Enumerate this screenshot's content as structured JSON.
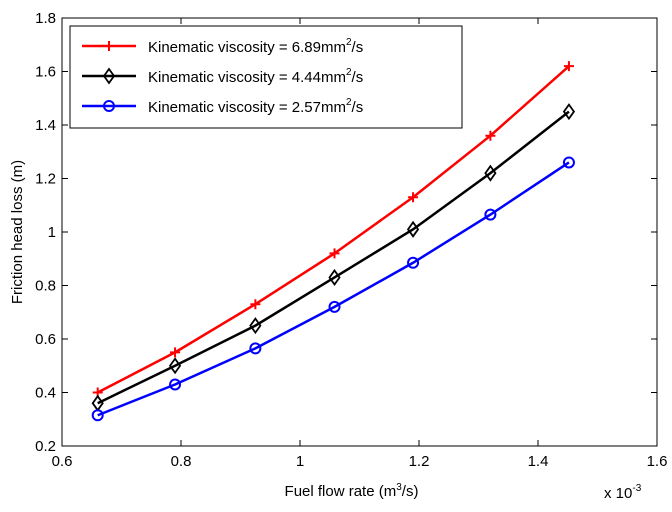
{
  "chart_data": {
    "type": "line",
    "x": [
      0.66,
      0.79,
      0.925,
      1.058,
      1.19,
      1.32,
      1.452
    ],
    "x_multiplier": "x 10",
    "x_multiplier_exponent": "-3",
    "xlim": [
      0.6,
      1.6
    ],
    "ylim": [
      0.2,
      1.8
    ],
    "xticks": [
      "0.6",
      "0.8",
      "1",
      "1.2",
      "1.4",
      "1.6"
    ],
    "yticks": [
      "0.2",
      "0.4",
      "0.6",
      "0.8",
      "1",
      "1.2",
      "1.4",
      "1.6",
      "1.8"
    ],
    "xlabel": "Fuel flow rate (m",
    "xlabel_sup": "3",
    "xlabel_tail": "/s)",
    "ylabel": "Friction head loss (m)",
    "grid": false,
    "legend_position": "top-left",
    "series": [
      {
        "name": "Kinematic viscosity = 6.89mm",
        "name_sup": "2",
        "name_tail": "/s",
        "color": "#ff0000",
        "marker": "plus",
        "values": [
          0.4,
          0.55,
          0.73,
          0.92,
          1.13,
          1.36,
          1.62
        ]
      },
      {
        "name": "Kinematic viscosity = 4.44mm",
        "name_sup": "2",
        "name_tail": "/s",
        "color": "#000000",
        "marker": "diamond",
        "values": [
          0.36,
          0.5,
          0.65,
          0.83,
          1.01,
          1.22,
          1.45
        ]
      },
      {
        "name": "Kinematic viscosity = 2.57mm",
        "name_sup": "2",
        "name_tail": "/s",
        "color": "#0000ff",
        "marker": "circle",
        "values": [
          0.315,
          0.43,
          0.565,
          0.72,
          0.885,
          1.065,
          1.26
        ]
      }
    ]
  }
}
